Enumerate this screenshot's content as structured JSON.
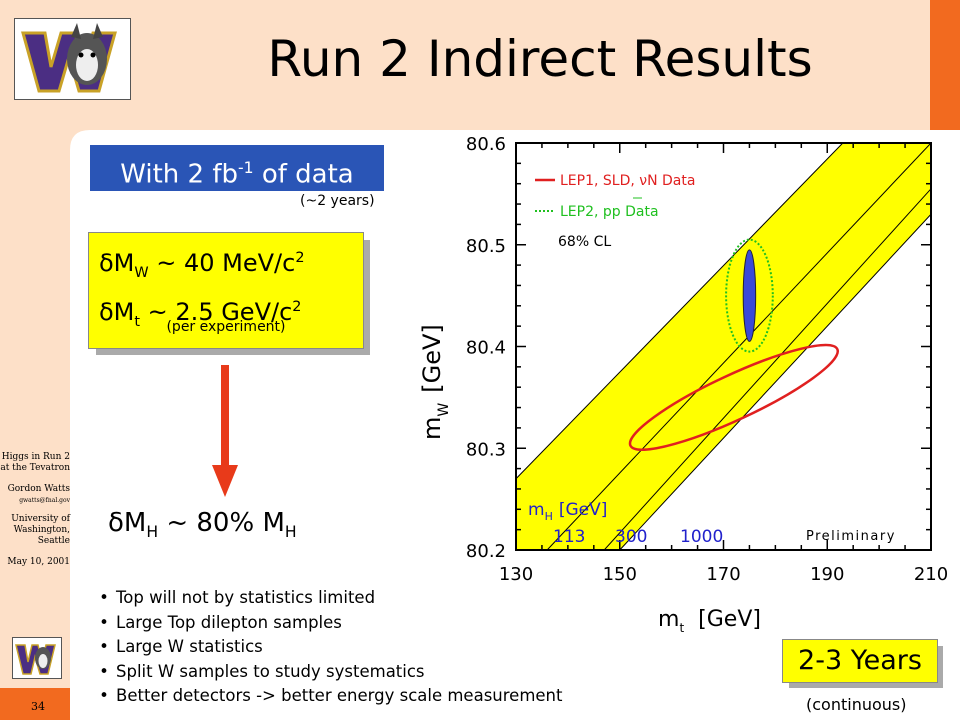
{
  "slide": {
    "title": "Run 2 Indirect Results",
    "page_number": "34",
    "colors": {
      "background": "#fde0c8",
      "content_bg": "#ffffff",
      "orange": "#f26a1f",
      "blue": "#2a55b6",
      "yellow": "#ffff00",
      "arrow_red": "#e83a1a"
    }
  },
  "sidebar": {
    "line1": "Higgs in Run 2",
    "line2": "at the Tevatron",
    "author": "Gordon Watts",
    "email": "gwatts@fnal.gov",
    "uni1": "University of",
    "uni2": "Washington,",
    "uni3": "Seattle",
    "date": "May 10, 2001"
  },
  "content": {
    "data_box": {
      "prefix": "With 2 fb",
      "sup": "-1",
      "suffix": " of data"
    },
    "years_note": "(~2 years)",
    "res": {
      "w_sym": "δM",
      "w_sub": "W",
      "w_val": " ~ 40 MeV/c",
      "w_sup": "2",
      "t_sym": "δM",
      "t_sub": "t",
      "t_val": " ~ 2.5 GeV/c",
      "t_sup": "2",
      "per_experiment": "(per experiment)"
    },
    "higgs": {
      "sym": "δM",
      "sub": "H",
      "mid": " ~ 80% M",
      "sub2": "H"
    },
    "bullets": [
      "Top will not by statistics limited",
      "Large Top dilepton samples",
      "Large W statistics",
      "Split W samples to study systematics",
      "Better detectors -> better energy scale measurement"
    ],
    "years_box": "2-3 Years",
    "continuous": "(continuous)"
  },
  "chart_data": {
    "type": "scatter",
    "xlabel": "m",
    "xlabel_sub": "t",
    "xlabel_unit": "[GeV]",
    "ylabel": "m",
    "ylabel_sub": "W",
    "ylabel_unit": "[GeV]",
    "xlim": [
      130,
      210
    ],
    "ylim": [
      80.2,
      80.6
    ],
    "xticks": [
      "130",
      "150",
      "170",
      "190",
      "210"
    ],
    "yticks": [
      "80.2",
      "80.3",
      "80.4",
      "80.5",
      "80.6"
    ],
    "legend": [
      {
        "label": "LEP1, SLD, νN Data",
        "color": "#e02020",
        "style": "solid"
      },
      {
        "label": "LEP2, pp Data",
        "color": "#20c020",
        "style": "dotted"
      }
    ],
    "cl_text": "68% CL",
    "higgs_band_label": "m",
    "higgs_band_label_sub": "H",
    "higgs_band_label_unit": "[GeV]",
    "higgs_masses": [
      "113",
      "300",
      "1000"
    ],
    "preliminary": "Preliminary",
    "band_color": "#ffff00",
    "run2_ellipse": {
      "center": [
        175,
        80.45
      ],
      "half_width_x": 1.2,
      "half_height_y": 0.045,
      "color": "#3a4ad8"
    },
    "green_ellipse": {
      "center": [
        175,
        80.45
      ],
      "half_width_x": 4.5,
      "half_height_y": 0.055,
      "color": "#20c020"
    },
    "red_ellipse": {
      "center": [
        172,
        80.35
      ],
      "half_width_x": 22,
      "half_height_y": 0.022,
      "tilt_deg": -25,
      "color": "#e02020"
    }
  }
}
